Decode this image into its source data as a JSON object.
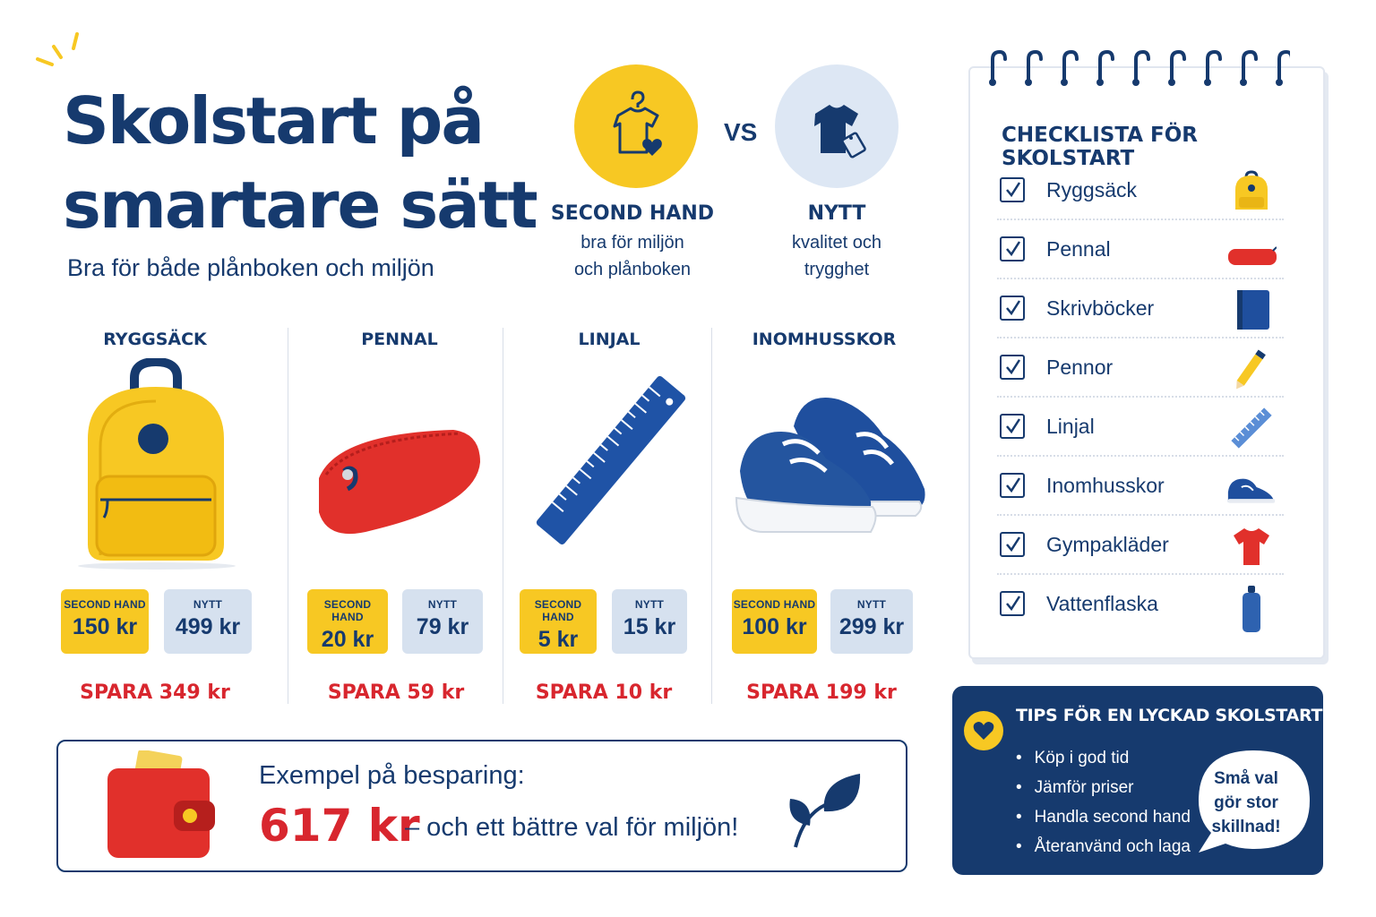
{
  "header": {
    "title": "Skolstart på smartare sätt",
    "subtitle": "Bra för både plånboken och miljön"
  },
  "comparison": {
    "vs_label": "VS",
    "second_hand": {
      "title": "SECOND HAND",
      "desc_line1": "bra för miljön",
      "desc_line2": "och plånboken"
    },
    "new": {
      "title": "NYTT",
      "desc_line1": "kvalitet och",
      "desc_line2": "trygghet"
    }
  },
  "products": [
    {
      "name": "RYGGSÄCK",
      "second_hand_label": "SECOND HAND",
      "second_hand_price": "150 kr",
      "new_label": "NYTT",
      "new_price": "499 kr",
      "save": "SPARA 349 kr"
    },
    {
      "name": "PENNAL",
      "second_hand_label": "SECOND HAND",
      "second_hand_price": "20 kr",
      "new_label": "NYTT",
      "new_price": "79 kr",
      "save": "SPARA 59 kr"
    },
    {
      "name": "LINJAL",
      "second_hand_label": "SECOND HAND",
      "second_hand_price": "5 kr",
      "new_label": "NYTT",
      "new_price": "15 kr",
      "save": "SPARA 10 kr"
    },
    {
      "name": "INOMHUSSKOR",
      "second_hand_label": "SECOND HAND",
      "second_hand_price": "100 kr",
      "new_label": "NYTT",
      "new_price": "299 kr",
      "save": "SPARA 199 kr"
    }
  ],
  "savings": {
    "label": "Exempel på besparing:",
    "amount": "617 kr",
    "text": "– och ett bättre val för miljön!"
  },
  "checklist": {
    "title": "CHECKLISTA FÖR SKOLSTART",
    "items": [
      {
        "label": "Ryggsäck",
        "icon": "backpack-icon"
      },
      {
        "label": "Pennal",
        "icon": "pencil-case-icon"
      },
      {
        "label": "Skrivböcker",
        "icon": "notebook-icon"
      },
      {
        "label": "Pennor",
        "icon": "pencil-icon"
      },
      {
        "label": "Linjal",
        "icon": "ruler-icon"
      },
      {
        "label": "Inomhusskor",
        "icon": "shoe-icon"
      },
      {
        "label": "Gympakläder",
        "icon": "tshirt-icon"
      },
      {
        "label": "Vattenflaska",
        "icon": "bottle-icon"
      }
    ]
  },
  "tips": {
    "title": "TIPS FÖR EN LYCKAD SKOLSTART",
    "items": [
      "Köp i god tid",
      "Jämför priser",
      "Handla second hand",
      "Återanvänd och laga"
    ],
    "bubble_line1": "Små val",
    "bubble_line2": "gör stor",
    "bubble_line3": "skillnad!"
  },
  "colors": {
    "navy": "#163a6e",
    "yellow": "#f7c823",
    "red": "#d8262e",
    "light_blue": "#d6e1ef"
  }
}
